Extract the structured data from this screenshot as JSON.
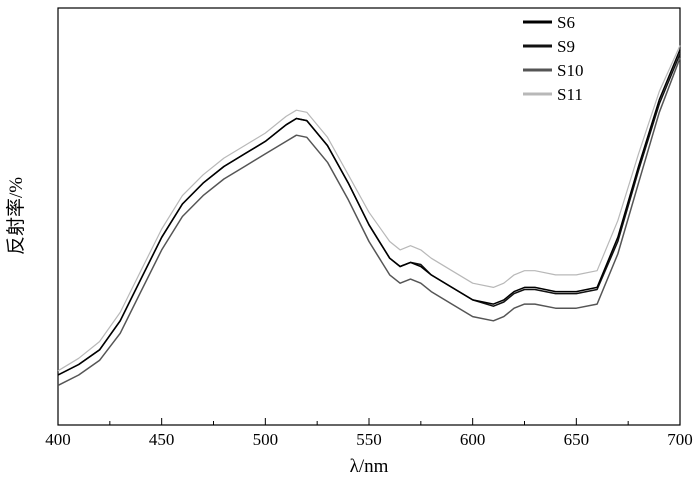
{
  "chart_data": {
    "type": "line",
    "title": "",
    "xlabel": "λ/nm",
    "ylabel": "反射率/%",
    "xlim": [
      400,
      700
    ],
    "ylim": [
      0,
      100
    ],
    "xticks": [
      400,
      450,
      500,
      550,
      600,
      650,
      700
    ],
    "yticks_labeled": false,
    "grid": false,
    "legend_position": "top-right",
    "series": [
      {
        "name": "S6",
        "color": "#000000",
        "x": [
          400,
          410,
          420,
          430,
          440,
          450,
          460,
          470,
          480,
          490,
          500,
          510,
          515,
          520,
          530,
          540,
          550,
          560,
          565,
          570,
          575,
          580,
          590,
          600,
          610,
          615,
          620,
          625,
          630,
          640,
          650,
          660,
          670,
          680,
          690,
          700
        ],
        "y": [
          12,
          14.5,
          18,
          25,
          35,
          45,
          53,
          58,
          62,
          65,
          68,
          72,
          73.5,
          73,
          67,
          58,
          48,
          40,
          38,
          39,
          38,
          36,
          33,
          30,
          29,
          30,
          32,
          33,
          33,
          32,
          32,
          33,
          45,
          62,
          78,
          90
        ]
      },
      {
        "name": "S9",
        "color": "#111111",
        "x": [
          400,
          410,
          420,
          430,
          440,
          450,
          460,
          470,
          480,
          490,
          500,
          510,
          515,
          520,
          530,
          540,
          550,
          560,
          565,
          570,
          575,
          580,
          590,
          600,
          610,
          615,
          620,
          625,
          630,
          640,
          650,
          660,
          670,
          680,
          690,
          700
        ],
        "y": [
          12,
          14.5,
          18,
          25,
          35,
          45,
          53,
          58,
          62,
          65,
          68,
          72,
          73.5,
          73,
          67,
          58,
          48,
          40,
          38,
          39,
          38.5,
          36,
          33,
          30,
          28.5,
          29.5,
          31.5,
          32.5,
          32.5,
          31.5,
          31.5,
          32.5,
          44,
          61,
          77,
          89
        ]
      },
      {
        "name": "S10",
        "color": "#555555",
        "x": [
          400,
          410,
          420,
          430,
          440,
          450,
          460,
          470,
          480,
          490,
          500,
          510,
          515,
          520,
          530,
          540,
          550,
          560,
          565,
          570,
          575,
          580,
          590,
          600,
          610,
          615,
          620,
          625,
          630,
          640,
          650,
          660,
          670,
          680,
          690,
          700
        ],
        "y": [
          9.5,
          12,
          15.5,
          22,
          32,
          42,
          50,
          55,
          59,
          62,
          65,
          68,
          69.5,
          69,
          63,
          54,
          44,
          36,
          34,
          35,
          34,
          32,
          29,
          26,
          25,
          26,
          28,
          29,
          29,
          28,
          28,
          29,
          41,
          58,
          75,
          88
        ]
      },
      {
        "name": "S11",
        "color": "#b8b8b8",
        "x": [
          400,
          410,
          420,
          430,
          440,
          450,
          460,
          470,
          480,
          490,
          500,
          510,
          515,
          520,
          530,
          540,
          550,
          560,
          565,
          570,
          575,
          580,
          590,
          600,
          610,
          615,
          620,
          625,
          630,
          640,
          650,
          660,
          670,
          680,
          690,
          700
        ],
        "y": [
          13,
          16,
          20,
          27,
          37,
          47,
          55,
          60,
          64,
          67,
          70,
          74,
          75.5,
          75,
          69,
          60,
          51,
          44,
          42,
          43,
          42,
          40,
          37,
          34,
          33,
          34,
          36,
          37,
          37,
          36,
          36,
          37,
          49,
          65,
          80,
          91
        ]
      }
    ]
  }
}
